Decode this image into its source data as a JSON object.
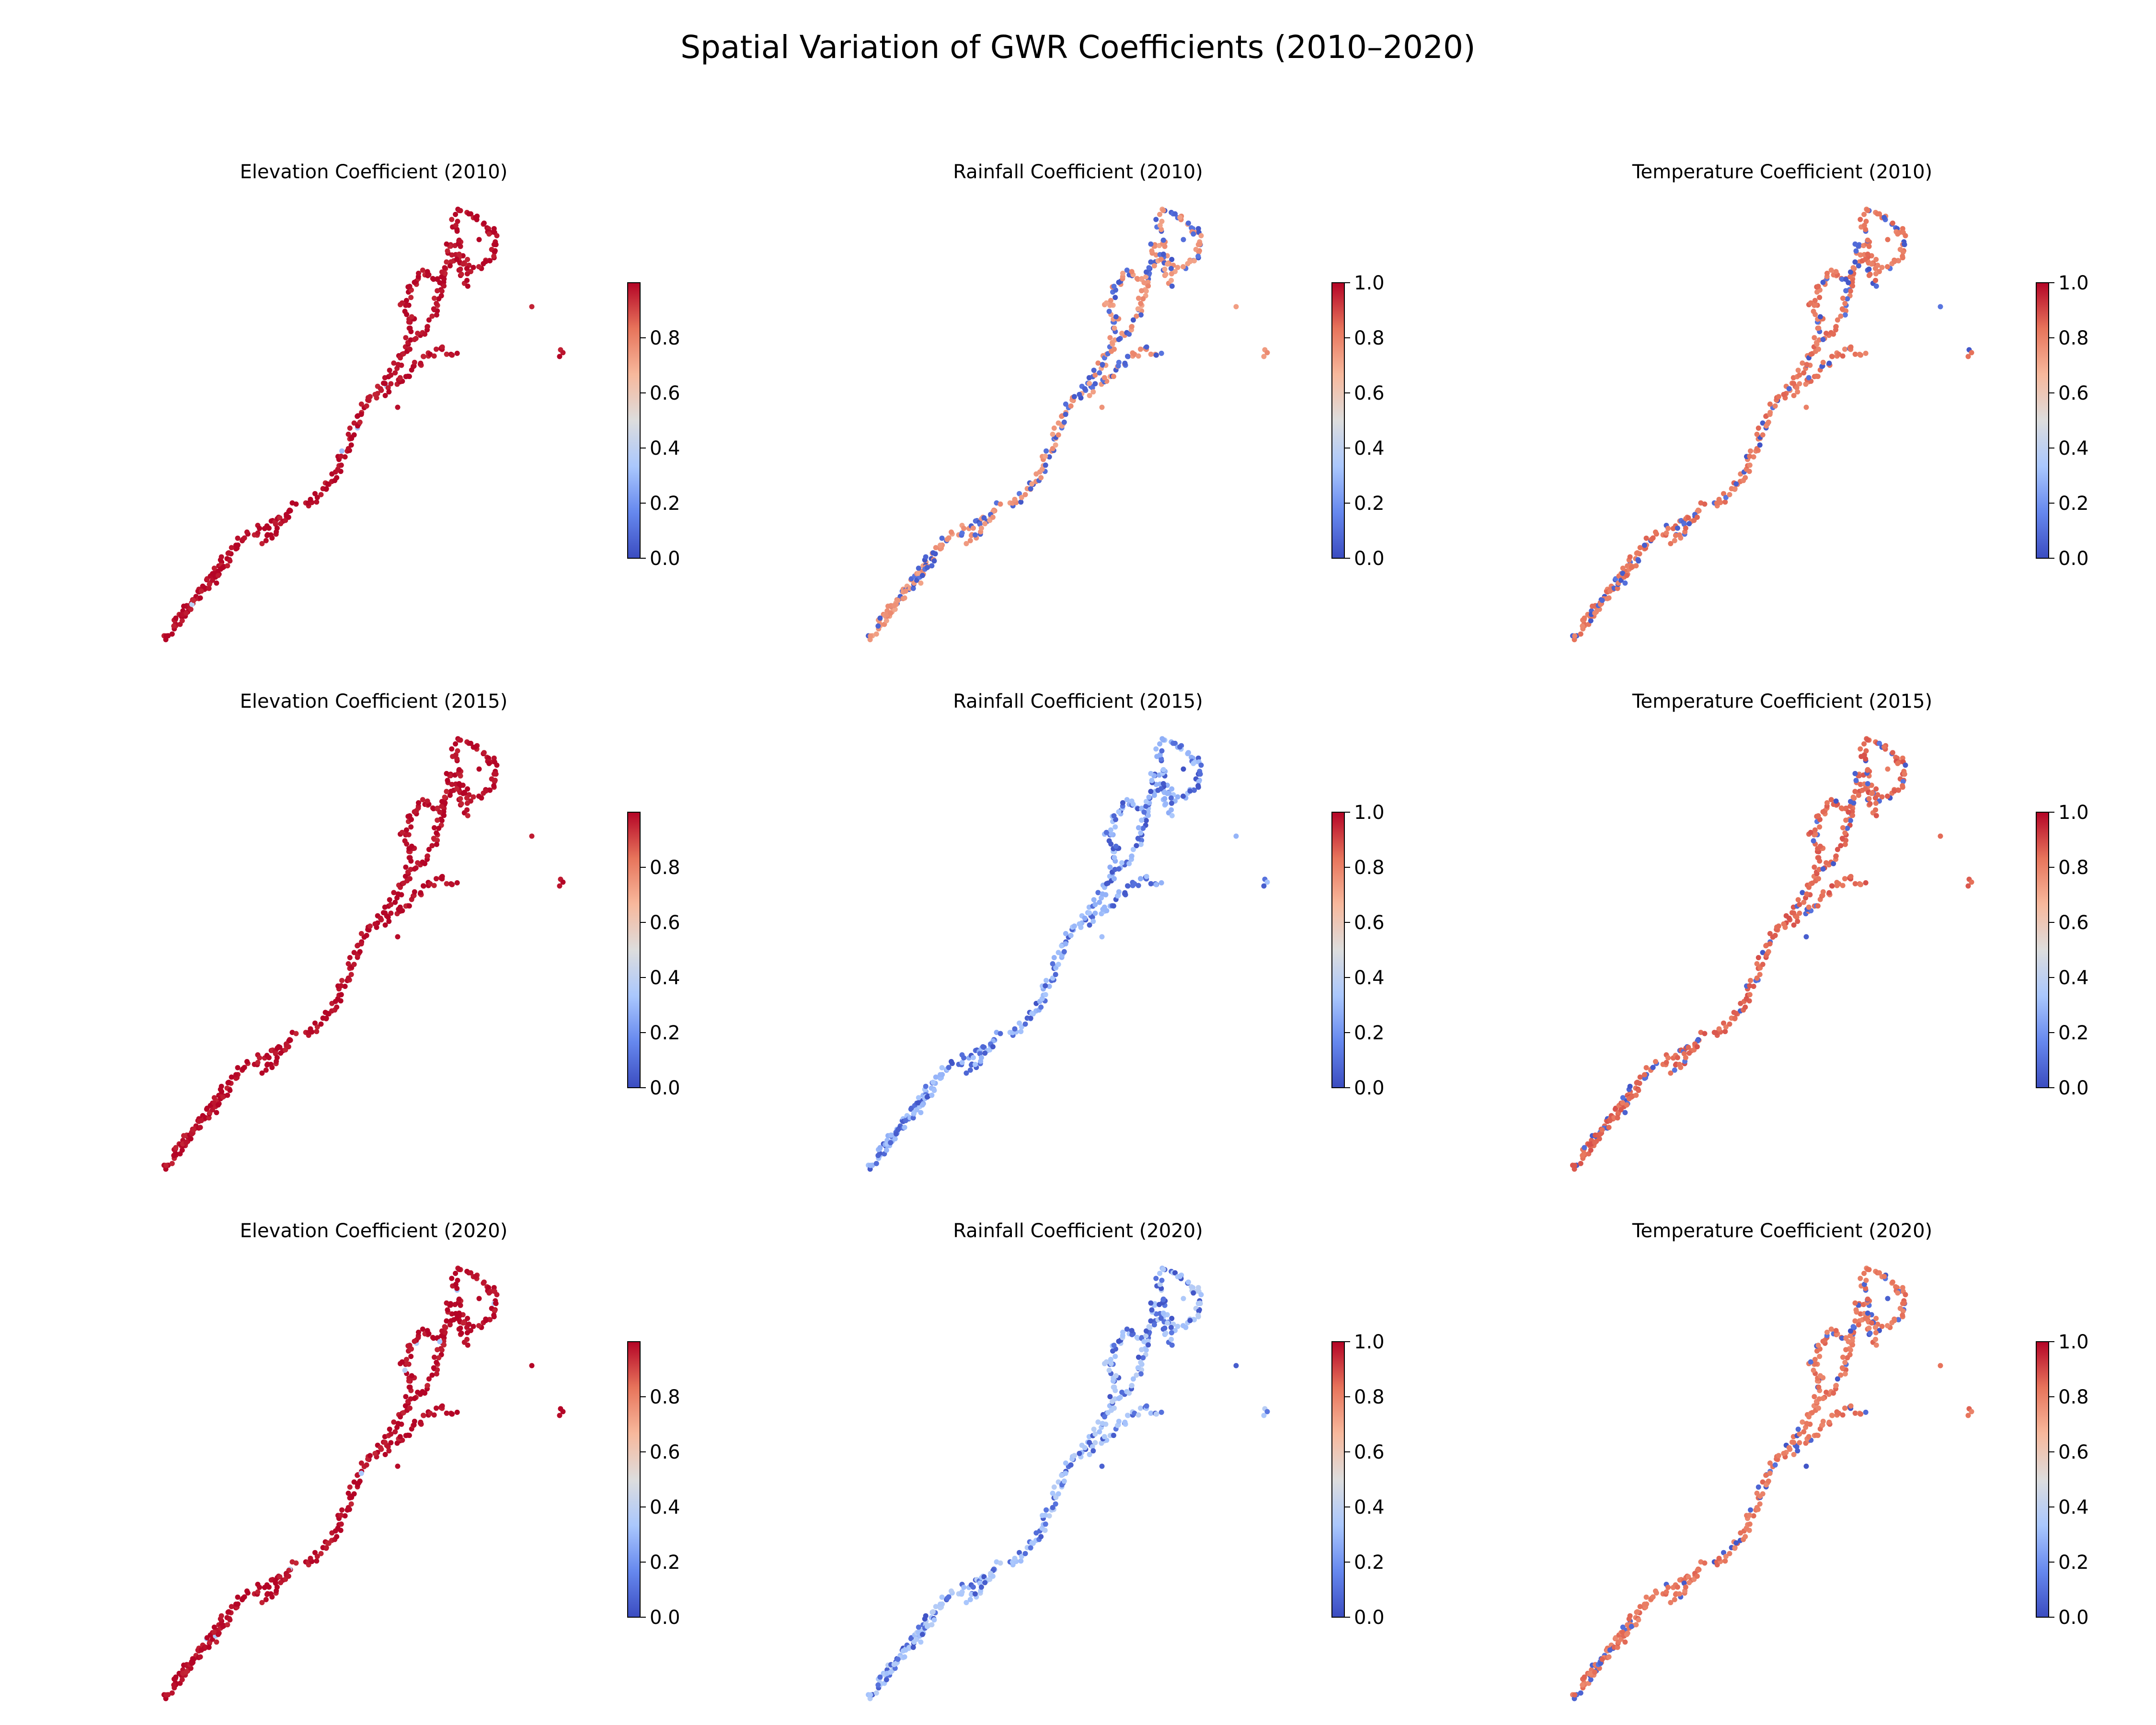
{
  "figure": {
    "title": "Spatial Variation of GWR Coefficients (2010–2020)"
  },
  "colormap": {
    "name": "coolwarm",
    "stops": [
      "#3b4cc0",
      "#6688ee",
      "#aac7fd",
      "#dddddd",
      "#f7b89c",
      "#e7745b",
      "#b40426"
    ]
  },
  "chart_data": [
    {
      "type": "scatter",
      "title": "Elevation Coefficient (2010)",
      "variable": "elevation",
      "year": 2010,
      "colorbar_ticks": [
        "0.0",
        "0.2",
        "0.4",
        "0.6",
        "0.8"
      ],
      "clim": [
        0,
        1
      ],
      "dominant_value": 0.99,
      "minor_value": 0.3,
      "minor_share": 0.01
    },
    {
      "type": "scatter",
      "title": "Rainfall Coefficient (2010)",
      "variable": "rainfall",
      "year": 2010,
      "colorbar_ticks": [
        "0.0",
        "0.2",
        "0.4",
        "0.6",
        "0.8",
        "1.0"
      ],
      "clim": [
        0,
        1
      ],
      "dominant_value": 0.75,
      "minor_value": 0.02,
      "minor_share": 0.4
    },
    {
      "type": "scatter",
      "title": "Temperature Coefficient (2010)",
      "variable": "temperature",
      "year": 2010,
      "colorbar_ticks": [
        "0.0",
        "0.2",
        "0.4",
        "0.6",
        "0.8",
        "1.0"
      ],
      "clim": [
        0,
        1
      ],
      "dominant_value": 0.82,
      "minor_value": 0.02,
      "minor_share": 0.2
    },
    {
      "type": "scatter",
      "title": "Elevation Coefficient (2015)",
      "variable": "elevation",
      "year": 2015,
      "colorbar_ticks": [
        "0.0",
        "0.2",
        "0.4",
        "0.6",
        "0.8"
      ],
      "clim": [
        0,
        1
      ],
      "dominant_value": 0.99,
      "minor_value": 0.3,
      "minor_share": 0.0
    },
    {
      "type": "scatter",
      "title": "Rainfall Coefficient (2015)",
      "variable": "rainfall",
      "year": 2015,
      "colorbar_ticks": [
        "0.0",
        "0.2",
        "0.4",
        "0.6",
        "0.8",
        "1.0"
      ],
      "clim": [
        0,
        1
      ],
      "dominant_value": 0.3,
      "minor_value": 0.02,
      "minor_share": 0.45
    },
    {
      "type": "scatter",
      "title": "Temperature Coefficient (2015)",
      "variable": "temperature",
      "year": 2015,
      "colorbar_ticks": [
        "0.0",
        "0.2",
        "0.4",
        "0.6",
        "0.8",
        "1.0"
      ],
      "clim": [
        0,
        1
      ],
      "dominant_value": 0.85,
      "minor_value": 0.02,
      "minor_share": 0.15
    },
    {
      "type": "scatter",
      "title": "Elevation Coefficient (2020)",
      "variable": "elevation",
      "year": 2020,
      "colorbar_ticks": [
        "0.0",
        "0.2",
        "0.4",
        "0.6",
        "0.8"
      ],
      "clim": [
        0,
        1
      ],
      "dominant_value": 0.99,
      "minor_value": 0.3,
      "minor_share": 0.01
    },
    {
      "type": "scatter",
      "title": "Rainfall Coefficient (2020)",
      "variable": "rainfall",
      "year": 2020,
      "colorbar_ticks": [
        "0.0",
        "0.2",
        "0.4",
        "0.6",
        "0.8",
        "1.0"
      ],
      "clim": [
        0,
        1
      ],
      "dominant_value": 0.35,
      "minor_value": 0.02,
      "minor_share": 0.4
    },
    {
      "type": "scatter",
      "title": "Temperature Coefficient (2020)",
      "variable": "temperature",
      "year": 2020,
      "colorbar_ticks": [
        "0.0",
        "0.2",
        "0.4",
        "0.6",
        "0.8",
        "1.0"
      ],
      "clim": [
        0,
        1
      ],
      "dominant_value": 0.82,
      "minor_value": 0.02,
      "minor_share": 0.2
    }
  ]
}
